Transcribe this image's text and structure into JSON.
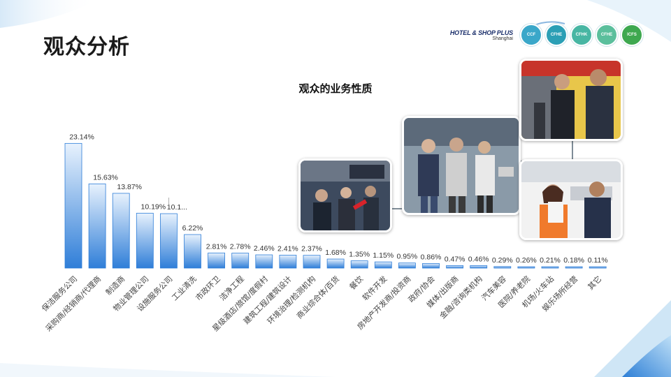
{
  "slide": {
    "title": "观众分析"
  },
  "logos": {
    "main": "HOTEL & SHOP PLUS",
    "sub": "Shanghai",
    "badges": [
      {
        "label": "CCF",
        "color": "#3aa7c9"
      },
      {
        "label": "CFHE",
        "color": "#2b9fb5"
      },
      {
        "label": "CFHK",
        "color": "#48b6a3"
      },
      {
        "label": "CFHE",
        "color": "#5bbf9c"
      },
      {
        "label": "ICFS",
        "color": "#3ea84f"
      }
    ]
  },
  "chart_data": {
    "type": "bar",
    "title": "观众的业务性质",
    "xlabel": "",
    "ylabel": "",
    "ylim": [
      0,
      25
    ],
    "bar_color": "#2f7ed8",
    "categories": [
      "保洁服务公司",
      "采购商/经销商/代理商",
      "制造商",
      "物业管理公司",
      "设施服务公司",
      "工业清洗",
      "市政环卫",
      "洁净工程",
      "星级酒店/旅馆/度假村",
      "建筑工程/建筑设计",
      "环境治理/检测机构",
      "商业综合体/百货",
      "餐饮",
      "软件开发",
      "房地产开发商/投资商",
      "政府/协会",
      "媒体/出版商",
      "金融/咨询类机构",
      "汽车美容",
      "医院/养老院",
      "机场/火车站",
      "娱乐场所经营",
      "其它"
    ],
    "values": [
      23.14,
      15.63,
      13.87,
      10.19,
      10.1,
      6.22,
      2.81,
      2.78,
      2.46,
      2.41,
      2.37,
      1.68,
      1.35,
      1.15,
      0.95,
      0.86,
      0.47,
      0.46,
      0.29,
      0.26,
      0.21,
      0.18,
      0.11
    ],
    "data_labels": [
      "23.14%",
      "15.63%",
      "13.87%",
      "10.19%",
      "10.1...",
      "6.22%",
      "2.81%",
      "2.78%",
      "2.46%",
      "2.41%",
      "2.37%",
      "1.68%",
      "1.35%",
      "1.15%",
      "0.95%",
      "0.86%",
      "0.47%",
      "0.46%",
      "0.29%",
      "0.26%",
      "0.21%",
      "0.18%",
      "0.11%"
    ]
  }
}
